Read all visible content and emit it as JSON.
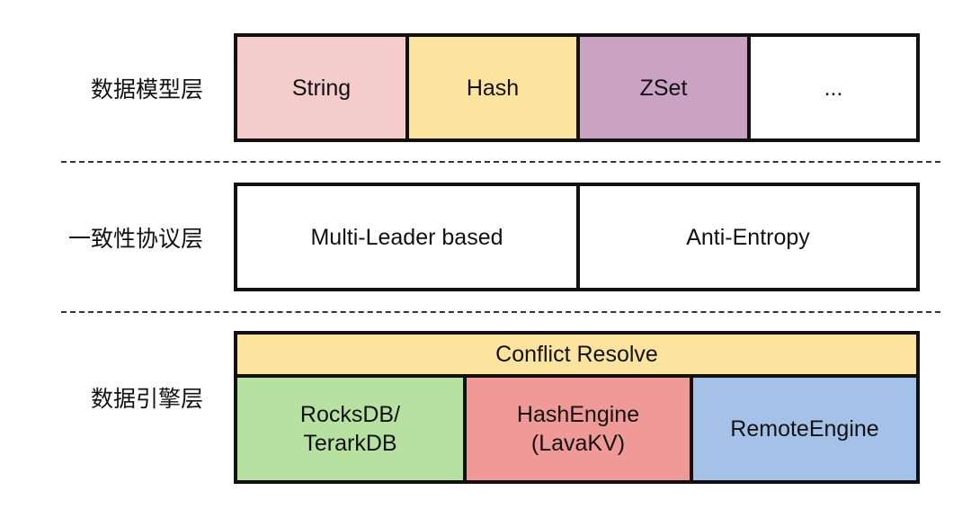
{
  "layers": [
    {
      "label": "数据模型层",
      "cells": [
        {
          "text": "String",
          "color": "#f4cccc"
        },
        {
          "text": "Hash",
          "color": "#fde49e"
        },
        {
          "text": "ZSet",
          "color": "#c9a3c1"
        },
        {
          "text": "...",
          "color": "#ffffff"
        }
      ]
    },
    {
      "label": "一致性协议层",
      "cells": [
        {
          "text": "Multi-Leader based",
          "color": "#ffffff"
        },
        {
          "text": "Anti-Entropy",
          "color": "#ffffff"
        }
      ]
    },
    {
      "label": "数据引擎层",
      "header": {
        "text": "Conflict Resolve",
        "color": "#fde49e"
      },
      "cells": [
        {
          "line1": "RocksDB/",
          "line2": "TerarkDB",
          "color": "#b7e1a1"
        },
        {
          "line1": "HashEngine",
          "line2": "(LavaKV)",
          "color": "#ef9a96"
        },
        {
          "text": "RemoteEngine",
          "color": "#a4c2e8"
        }
      ]
    }
  ]
}
